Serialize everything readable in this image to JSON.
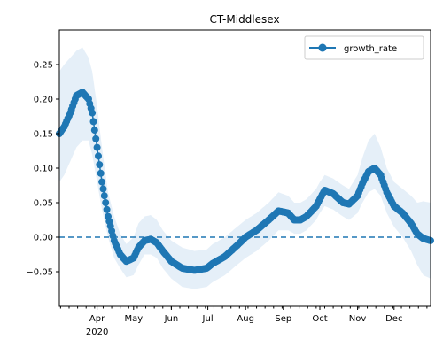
{
  "chart_data": {
    "type": "line",
    "title": "CT-Middlesex",
    "xlabel": "",
    "ylabel": "",
    "x_range": [
      "2020-03-01",
      "2020-12-31"
    ],
    "ylim": [
      -0.1,
      0.3
    ],
    "x_ticks": [
      {
        "date": "2020-04-01",
        "label": "Apr",
        "sublabel": "2020"
      },
      {
        "date": "2020-05-01",
        "label": "May",
        "sublabel": ""
      },
      {
        "date": "2020-06-01",
        "label": "Jun",
        "sublabel": ""
      },
      {
        "date": "2020-07-01",
        "label": "Jul",
        "sublabel": ""
      },
      {
        "date": "2020-08-01",
        "label": "Aug",
        "sublabel": ""
      },
      {
        "date": "2020-09-01",
        "label": "Sep",
        "sublabel": ""
      },
      {
        "date": "2020-10-01",
        "label": "Oct",
        "sublabel": ""
      },
      {
        "date": "2020-11-01",
        "label": "Nov",
        "sublabel": ""
      },
      {
        "date": "2020-12-01",
        "label": "Dec",
        "sublabel": ""
      }
    ],
    "y_ticks": [
      -0.05,
      0.0,
      0.05,
      0.1,
      0.15,
      0.2,
      0.25
    ],
    "y_tick_labels": [
      "−0.05",
      "0.00",
      "0.05",
      "0.10",
      "0.15",
      "0.20",
      "0.25"
    ],
    "legend": {
      "position": "top-right",
      "entries": [
        "growth_rate"
      ]
    },
    "reference_line": {
      "y": 0.0,
      "style": "dashed"
    },
    "colors": {
      "line": "#1f77b4",
      "band": "#dce9f5"
    },
    "series": [
      {
        "name": "growth_rate",
        "x": [
          "2020-03-01",
          "2020-03-05",
          "2020-03-10",
          "2020-03-15",
          "2020-03-20",
          "2020-03-25",
          "2020-03-28",
          "2020-04-01",
          "2020-04-05",
          "2020-04-10",
          "2020-04-15",
          "2020-04-20",
          "2020-04-25",
          "2020-05-01",
          "2020-05-05",
          "2020-05-10",
          "2020-05-15",
          "2020-05-20",
          "2020-05-25",
          "2020-06-01",
          "2020-06-10",
          "2020-06-20",
          "2020-06-30",
          "2020-07-05",
          "2020-07-15",
          "2020-07-25",
          "2020-08-01",
          "2020-08-10",
          "2020-08-20",
          "2020-08-28",
          "2020-09-05",
          "2020-09-10",
          "2020-09-15",
          "2020-09-20",
          "2020-09-28",
          "2020-10-01",
          "2020-10-05",
          "2020-10-12",
          "2020-10-20",
          "2020-10-25",
          "2020-11-01",
          "2020-11-05",
          "2020-11-10",
          "2020-11-15",
          "2020-11-20",
          "2020-11-25",
          "2020-12-01",
          "2020-12-08",
          "2020-12-15",
          "2020-12-20",
          "2020-12-25",
          "2020-12-31"
        ],
        "values": [
          0.15,
          0.16,
          0.18,
          0.205,
          0.21,
          0.2,
          0.18,
          0.13,
          0.08,
          0.03,
          -0.005,
          -0.025,
          -0.035,
          -0.03,
          -0.015,
          -0.005,
          -0.003,
          -0.008,
          -0.02,
          -0.035,
          -0.045,
          -0.048,
          -0.045,
          -0.038,
          -0.028,
          -0.012,
          0.0,
          0.01,
          0.025,
          0.038,
          0.035,
          0.025,
          0.025,
          0.03,
          0.045,
          0.055,
          0.068,
          0.063,
          0.05,
          0.048,
          0.06,
          0.078,
          0.095,
          0.1,
          0.09,
          0.065,
          0.045,
          0.035,
          0.02,
          0.005,
          -0.002,
          -0.005
        ],
        "lower": [
          0.08,
          0.09,
          0.11,
          0.13,
          0.14,
          0.14,
          0.12,
          0.08,
          0.04,
          0.0,
          -0.03,
          -0.045,
          -0.058,
          -0.055,
          -0.04,
          -0.025,
          -0.025,
          -0.03,
          -0.045,
          -0.06,
          -0.072,
          -0.075,
          -0.072,
          -0.065,
          -0.055,
          -0.04,
          -0.03,
          -0.02,
          -0.005,
          0.01,
          0.01,
          0.005,
          0.005,
          0.01,
          0.025,
          0.035,
          0.045,
          0.04,
          0.03,
          0.025,
          0.035,
          0.05,
          0.065,
          0.07,
          0.06,
          0.035,
          0.015,
          0.0,
          -0.02,
          -0.04,
          -0.055,
          -0.06
        ],
        "upper": [
          0.24,
          0.25,
          0.26,
          0.27,
          0.275,
          0.26,
          0.24,
          0.19,
          0.13,
          0.065,
          0.03,
          0.005,
          -0.01,
          0.0,
          0.02,
          0.03,
          0.032,
          0.025,
          0.01,
          -0.005,
          -0.015,
          -0.02,
          -0.018,
          -0.01,
          0.0,
          0.015,
          0.025,
          0.035,
          0.05,
          0.065,
          0.06,
          0.05,
          0.05,
          0.055,
          0.07,
          0.08,
          0.09,
          0.085,
          0.075,
          0.07,
          0.09,
          0.115,
          0.14,
          0.15,
          0.13,
          0.1,
          0.08,
          0.07,
          0.06,
          0.05,
          0.052,
          0.05
        ]
      }
    ]
  }
}
